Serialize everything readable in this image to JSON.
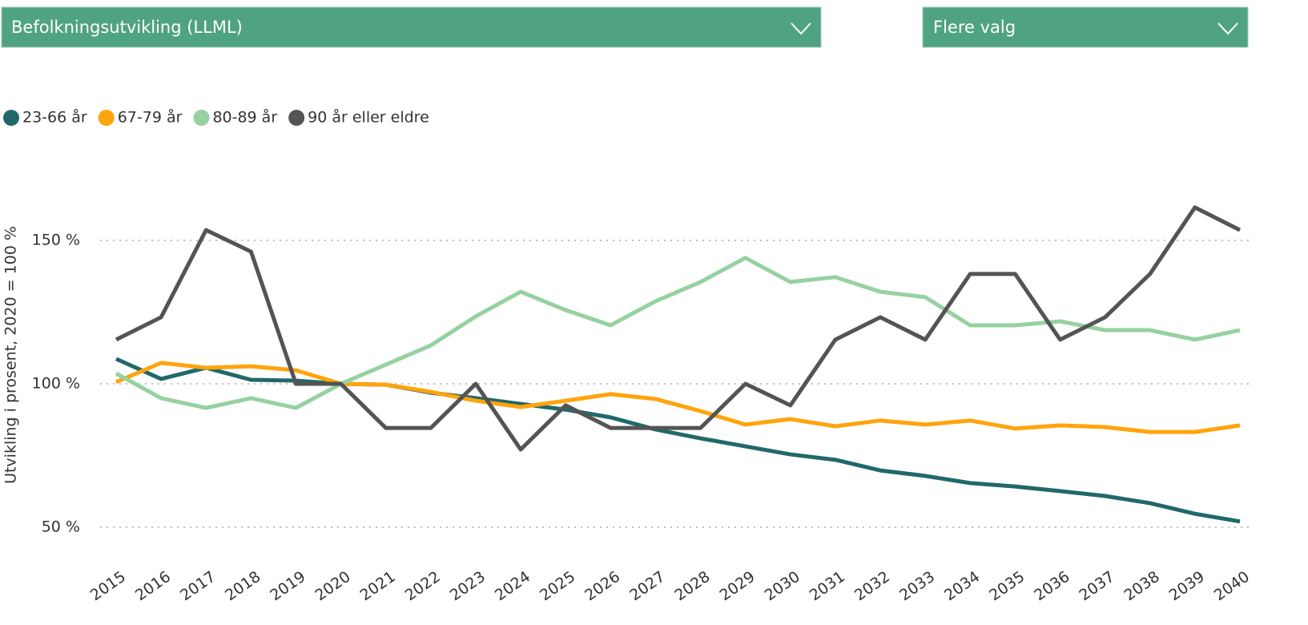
{
  "dropdowns": [
    "Befolkningsutvikling (LLML)",
    "Flere valg"
  ],
  "chart_data": {
    "type": "line",
    "y_label": "Utvikling i prosent, 2020 = 100 %",
    "categories": [
      "2015",
      "2016",
      "2017",
      "2018",
      "2019",
      "2020",
      "2021",
      "2022",
      "2023",
      "2024",
      "2025",
      "2026",
      "2027",
      "2028",
      "2029",
      "2030",
      "2031",
      "2032",
      "2033",
      "2034",
      "2035",
      "2036",
      "2037",
      "2038",
      "2039",
      "2040"
    ],
    "series": [
      {
        "name": "23-66 år",
        "color": "#21686a",
        "values": [
          108.7,
          101.7,
          105.6,
          101.4,
          101.1,
          100,
          99.7,
          96.9,
          95,
          93,
          91,
          88.3,
          84.1,
          81,
          78.2,
          75.4,
          73.5,
          69.8,
          67.9,
          65.4,
          64.2,
          62.6,
          60.9,
          58.4,
          54.7,
          52
        ]
      },
      {
        "name": "67-79 år",
        "color": "#ffa40c",
        "values": [
          100.6,
          107.3,
          105.6,
          106.1,
          104.7,
          100,
          99.7,
          97.2,
          94.1,
          91.9,
          94.1,
          96.4,
          94.7,
          90.5,
          85.8,
          87.7,
          85.2,
          87.2,
          85.8,
          87.2,
          84.4,
          85.5,
          84.9,
          83.2,
          83.2,
          85.5
        ]
      },
      {
        "name": "80-89 år",
        "color": "#96d1a1",
        "values": [
          103.6,
          95,
          91.6,
          95,
          91.6,
          100,
          106.7,
          113.4,
          123.5,
          132.1,
          125.7,
          120.4,
          128.8,
          135.5,
          143.9,
          135.5,
          137.2,
          132.1,
          130.2,
          120.4,
          120.4,
          121.8,
          118.7,
          118.7,
          115.4,
          118.7
        ]
      },
      {
        "name": "90 år eller eldre",
        "color": "#545454",
        "values": [
          115.4,
          123.2,
          153.6,
          146.1,
          100,
          100,
          84.6,
          84.6,
          100,
          77.1,
          92.5,
          84.6,
          84.6,
          84.6,
          100,
          92.5,
          115.4,
          123.2,
          115.4,
          138.3,
          138.3,
          115.4,
          123.2,
          138.3,
          161.5,
          153.6
        ]
      }
    ],
    "ylim": [
      40,
      167
    ],
    "yticks": [
      {
        "value": 50,
        "label": "50 %"
      },
      {
        "value": 100,
        "label": "100 %"
      },
      {
        "value": 150,
        "label": "150 %"
      }
    ],
    "grid": true
  }
}
